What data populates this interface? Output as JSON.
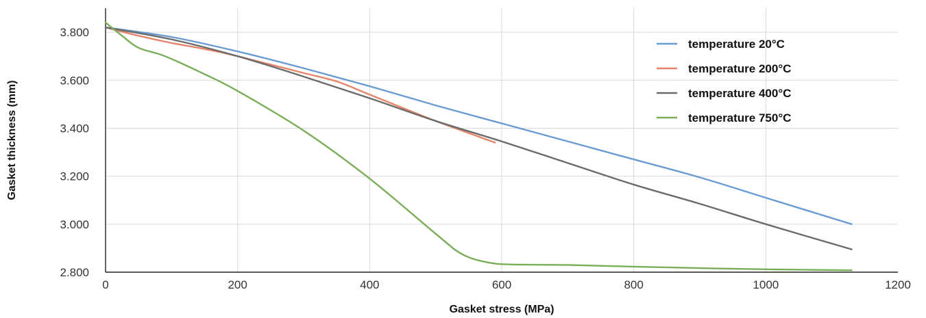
{
  "chart_data": {
    "type": "line",
    "title": "",
    "xlabel": "Gasket stress (MPa)",
    "ylabel": "Gasket thickness (mm)",
    "xlim": [
      0,
      1200
    ],
    "ylim": [
      2.8,
      3.9
    ],
    "x_ticks": [
      "0",
      "200",
      "400",
      "600",
      "800",
      "1000",
      "1200"
    ],
    "y_ticks": [
      "2.800",
      "3.000",
      "3.200",
      "3.400",
      "3.600",
      "3.800"
    ],
    "grid": true,
    "legend_position": "top-right",
    "series": [
      {
        "name": "temperature 20°C",
        "color": "#6a9bd3",
        "points": [
          [
            0,
            3.82
          ],
          [
            100,
            3.78
          ],
          [
            200,
            3.72
          ],
          [
            300,
            3.65
          ],
          [
            400,
            3.575
          ],
          [
            500,
            3.495
          ],
          [
            600,
            3.42
          ],
          [
            700,
            3.345
          ],
          [
            800,
            3.27
          ],
          [
            900,
            3.195
          ],
          [
            1000,
            3.11
          ],
          [
            1130,
            3.0
          ]
        ]
      },
      {
        "name": "temperature 200°C",
        "color": "#e58468",
        "points": [
          [
            0,
            3.82
          ],
          [
            50,
            3.785
          ],
          [
            100,
            3.755
          ],
          [
            150,
            3.73
          ],
          [
            200,
            3.7
          ],
          [
            300,
            3.63
          ],
          [
            350,
            3.595
          ],
          [
            400,
            3.54
          ],
          [
            500,
            3.43
          ],
          [
            590,
            3.34
          ]
        ]
      },
      {
        "name": "temperature 400°C",
        "color": "#6b6b6b",
        "points": [
          [
            0,
            3.82
          ],
          [
            100,
            3.77
          ],
          [
            200,
            3.7
          ],
          [
            300,
            3.615
          ],
          [
            400,
            3.525
          ],
          [
            500,
            3.43
          ],
          [
            600,
            3.345
          ],
          [
            700,
            3.255
          ],
          [
            800,
            3.165
          ],
          [
            900,
            3.085
          ],
          [
            1000,
            3.0
          ],
          [
            1130,
            2.895
          ]
        ]
      },
      {
        "name": "temperature 750°C",
        "color": "#7aad58",
        "points": [
          [
            0,
            3.84
          ],
          [
            25,
            3.785
          ],
          [
            50,
            3.735
          ],
          [
            90,
            3.7
          ],
          [
            150,
            3.625
          ],
          [
            200,
            3.555
          ],
          [
            300,
            3.39
          ],
          [
            400,
            3.19
          ],
          [
            500,
            2.96
          ],
          [
            540,
            2.875
          ],
          [
            580,
            2.84
          ],
          [
            620,
            2.832
          ],
          [
            700,
            2.83
          ],
          [
            800,
            2.823
          ],
          [
            900,
            2.817
          ],
          [
            1000,
            2.812
          ],
          [
            1130,
            2.808
          ]
        ]
      }
    ]
  }
}
